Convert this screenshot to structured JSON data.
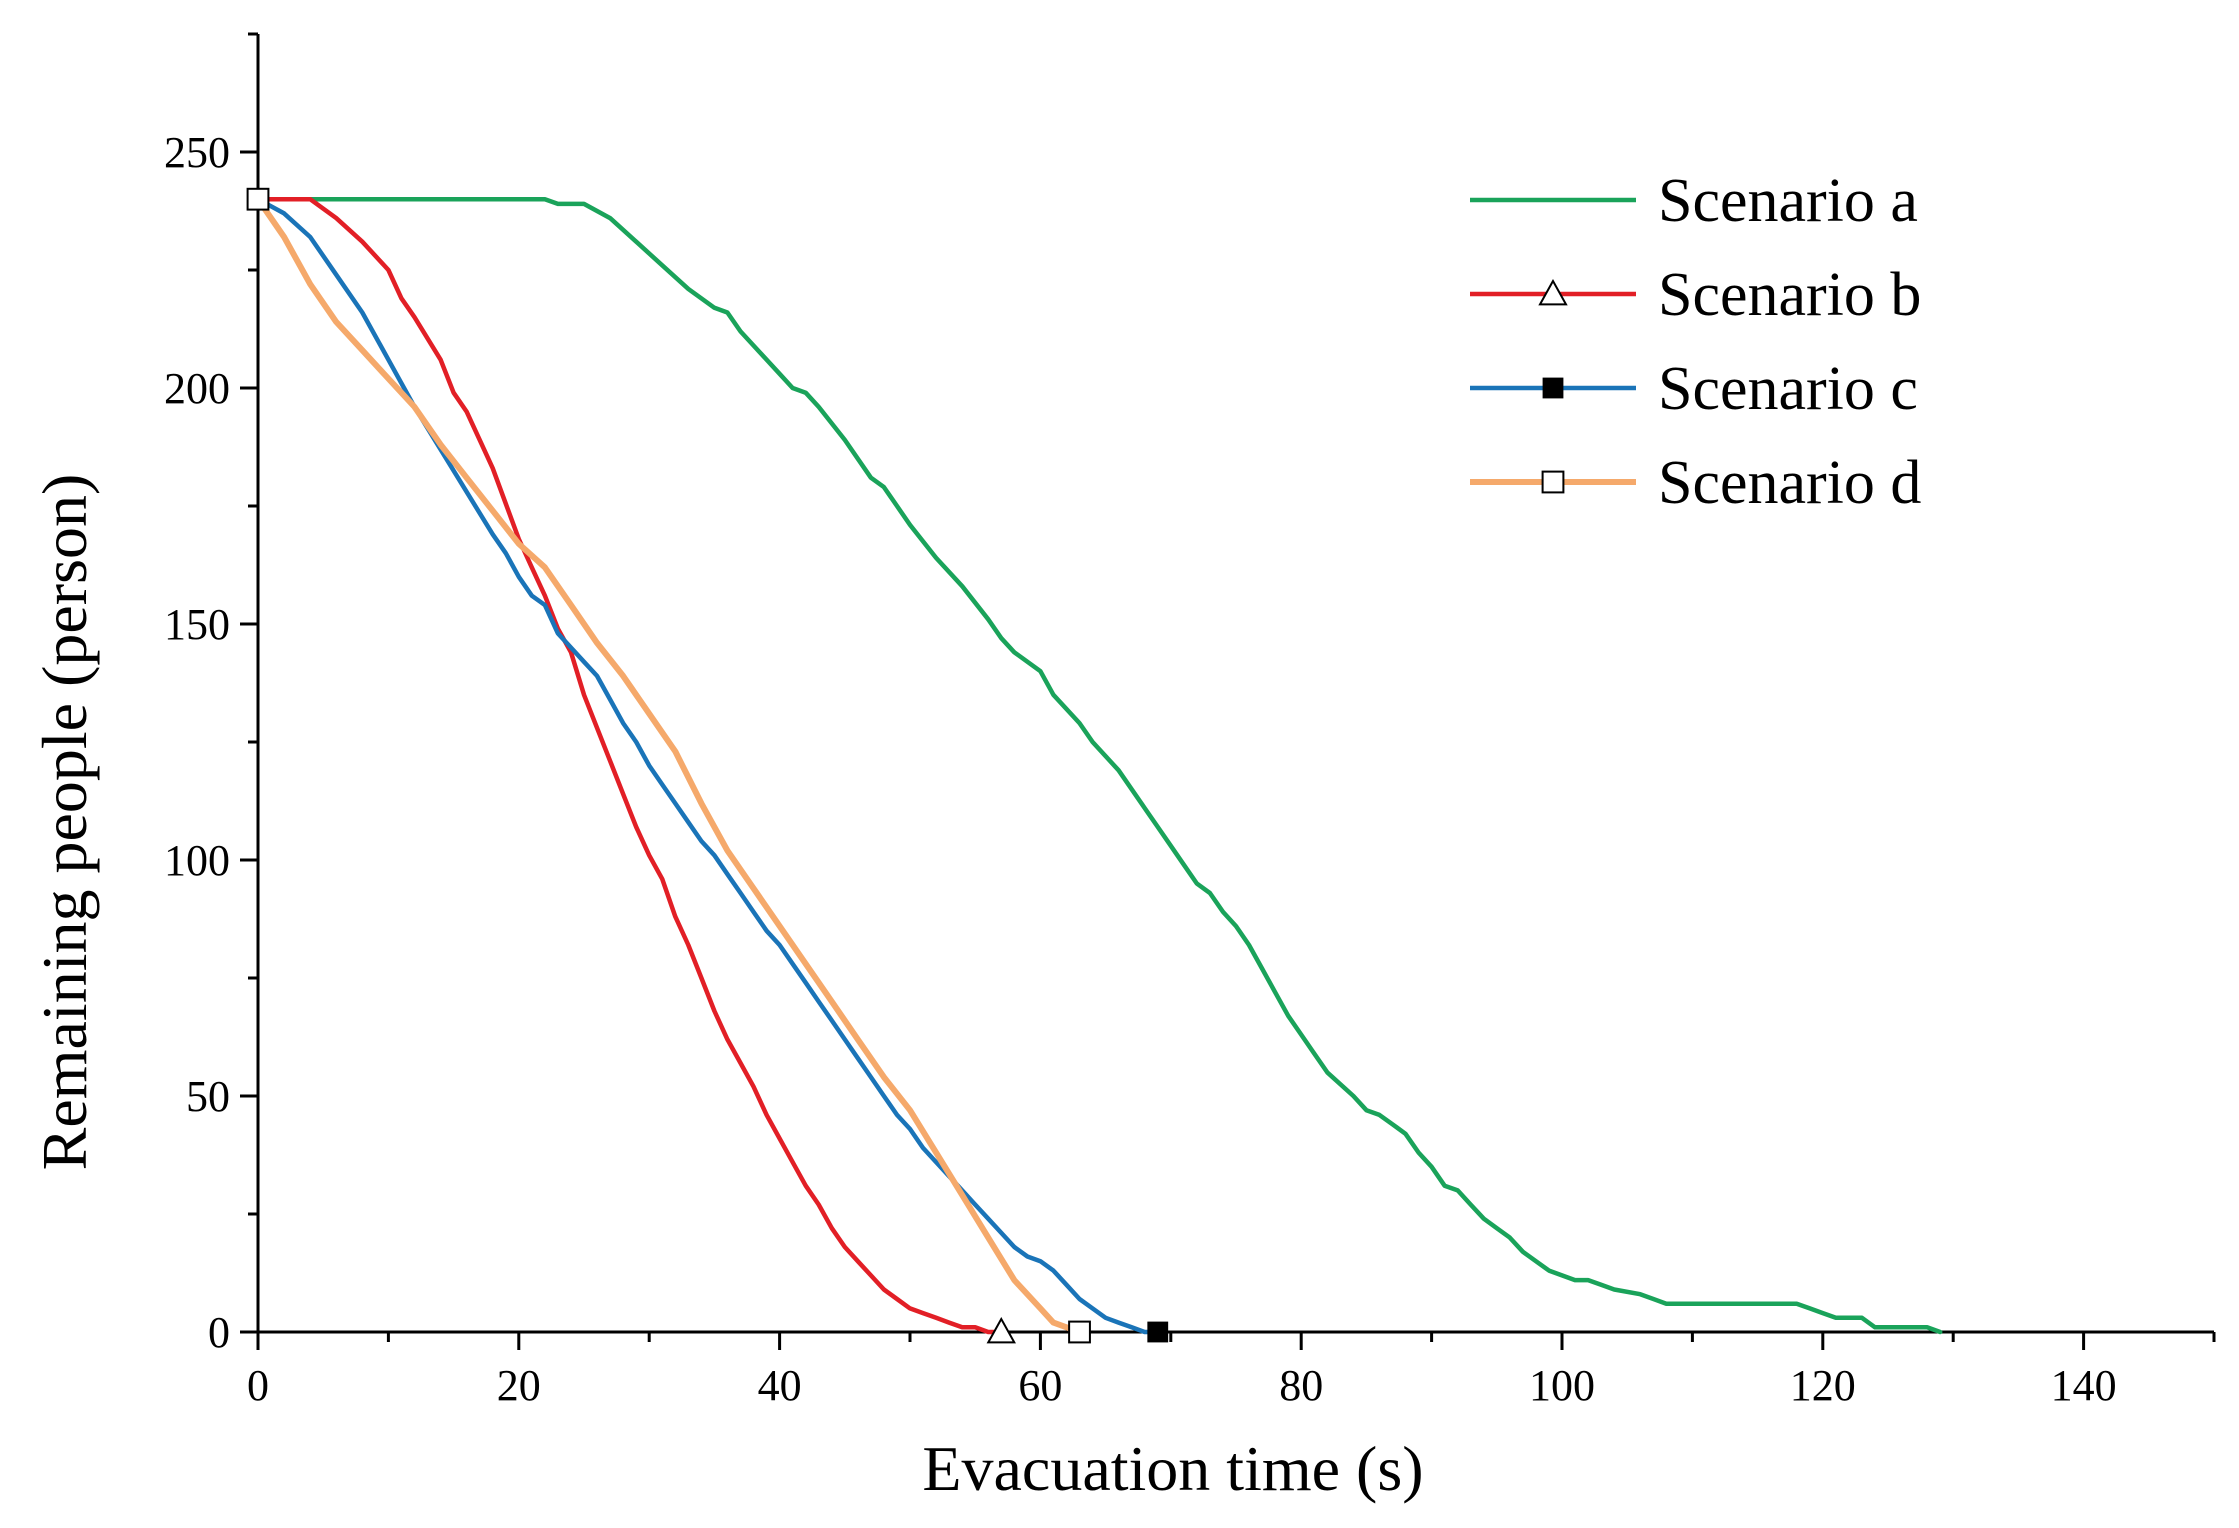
{
  "chart_data": {
    "type": "line",
    "title": "",
    "xlabel": "Evacuation time (s)",
    "ylabel": "Remaining people (person)",
    "xlim": [
      0,
      150
    ],
    "ylim": [
      0,
      275
    ],
    "x_ticks": [
      0,
      20,
      40,
      60,
      80,
      100,
      120,
      140
    ],
    "y_ticks": [
      0,
      50,
      100,
      150,
      200,
      250
    ],
    "grid": false,
    "legend_position": "top-right",
    "series": [
      {
        "name": "Scenario a",
        "color": "#1aa35a",
        "marker": "none",
        "x": [
          0,
          22,
          23,
          25,
          27,
          29,
          31,
          33,
          35,
          36,
          37,
          38,
          40,
          41,
          42,
          43,
          45,
          47,
          48,
          49,
          50,
          52,
          54,
          56,
          57,
          58,
          60,
          61,
          63,
          64,
          66,
          68,
          69,
          70,
          71,
          72,
          73,
          74,
          75,
          76,
          77,
          78,
          79,
          80,
          81,
          82,
          84,
          85,
          86,
          87,
          88,
          89,
          90,
          91,
          92,
          93,
          94,
          95,
          96,
          97,
          98,
          99,
          100,
          101,
          102,
          103,
          104,
          106,
          108,
          109,
          110,
          112,
          114,
          116,
          118,
          119,
          120,
          121,
          123,
          124,
          126,
          128,
          129
        ],
        "y": [
          240,
          240,
          239,
          239,
          236,
          231,
          226,
          221,
          217,
          216,
          212,
          209,
          203,
          200,
          199,
          196,
          189,
          181,
          179,
          175,
          171,
          164,
          158,
          151,
          147,
          144,
          140,
          135,
          129,
          125,
          119,
          111,
          107,
          103,
          99,
          95,
          93,
          89,
          86,
          82,
          77,
          72,
          67,
          63,
          59,
          55,
          50,
          47,
          46,
          44,
          42,
          38,
          35,
          31,
          30,
          27,
          24,
          22,
          20,
          17,
          15,
          13,
          12,
          11,
          11,
          10,
          9,
          8,
          6,
          6,
          6,
          6,
          6,
          6,
          6,
          5,
          4,
          3,
          3,
          1,
          1,
          1,
          0
        ]
      },
      {
        "name": "Scenario b",
        "color": "#e21f26",
        "marker": "open-triangle",
        "x": [
          0,
          4,
          6,
          8,
          10,
          11,
          12,
          14,
          15,
          16,
          17,
          18,
          20,
          21,
          22,
          23,
          24,
          25,
          26,
          27,
          28,
          29,
          30,
          31,
          32,
          33,
          34,
          35,
          36,
          37,
          38,
          39,
          40,
          41,
          42,
          43,
          44,
          45,
          46,
          47,
          48,
          49,
          50,
          51,
          52,
          53,
          54,
          55,
          56,
          57
        ],
        "y": [
          240,
          240,
          236,
          231,
          225,
          219,
          215,
          206,
          199,
          195,
          189,
          183,
          168,
          162,
          156,
          149,
          144,
          135,
          128,
          121,
          114,
          107,
          101,
          96,
          88,
          82,
          75,
          68,
          62,
          57,
          52,
          46,
          41,
          36,
          31,
          27,
          22,
          18,
          15,
          12,
          9,
          7,
          5,
          4,
          3,
          2,
          1,
          1,
          0,
          0
        ]
      },
      {
        "name": "Scenario c",
        "color": "#1a74b8",
        "marker": "filled-square",
        "x": [
          0,
          2,
          4,
          6,
          8,
          10,
          12,
          14,
          16,
          18,
          19,
          20,
          21,
          22,
          23,
          24,
          25,
          26,
          27,
          28,
          29,
          30,
          31,
          32,
          33,
          34,
          35,
          36,
          37,
          38,
          39,
          40,
          41,
          42,
          43,
          44,
          45,
          46,
          47,
          48,
          49,
          50,
          51,
          52,
          53,
          54,
          55,
          56,
          57,
          58,
          59,
          60,
          61,
          62,
          63,
          64,
          65,
          66,
          67,
          68,
          69
        ],
        "y": [
          240,
          237,
          232,
          224,
          216,
          206,
          196,
          187,
          178,
          169,
          165,
          160,
          156,
          154,
          148,
          145,
          142,
          139,
          134,
          129,
          125,
          120,
          116,
          112,
          108,
          104,
          101,
          97,
          93,
          89,
          85,
          82,
          78,
          74,
          70,
          66,
          62,
          58,
          54,
          50,
          46,
          43,
          39,
          36,
          33,
          30,
          27,
          24,
          21,
          18,
          16,
          15,
          13,
          10,
          7,
          5,
          3,
          2,
          1,
          0,
          0
        ]
      },
      {
        "name": "Scenario d",
        "color": "#f5a96b",
        "marker": "open-square",
        "x": [
          0,
          2,
          4,
          6,
          8,
          10,
          12,
          14,
          16,
          18,
          20,
          22,
          24,
          26,
          28,
          30,
          32,
          34,
          36,
          38,
          40,
          42,
          44,
          46,
          48,
          50,
          52,
          54,
          56,
          58,
          60,
          61,
          62,
          63
        ],
        "y": [
          240,
          232,
          222,
          214,
          208,
          202,
          196,
          188,
          181,
          174,
          167,
          162,
          154,
          146,
          139,
          131,
          123,
          112,
          102,
          94,
          86,
          78,
          70,
          62,
          54,
          47,
          38,
          29,
          20,
          11,
          5,
          2,
          1,
          0
        ]
      }
    ]
  }
}
